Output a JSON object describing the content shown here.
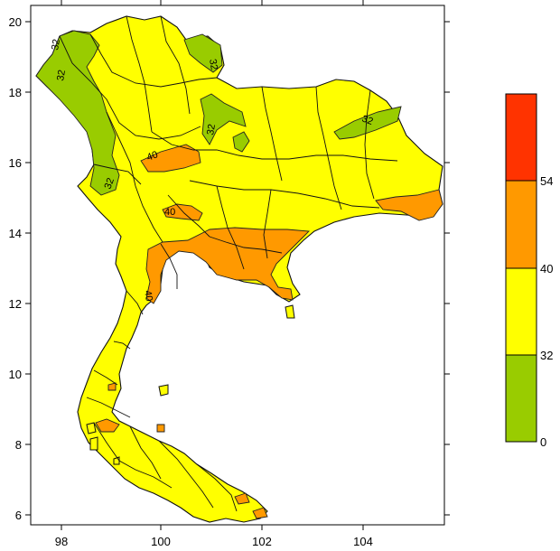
{
  "map": {
    "x_ticks": [
      "98",
      "100",
      "102",
      "104"
    ],
    "y_ticks": [
      "20",
      "18",
      "16",
      "14",
      "12",
      "10",
      "8",
      "6"
    ],
    "contour_labels": [
      "32",
      "32",
      "32",
      "32",
      "32",
      "32",
      "40",
      "40",
      "40"
    ],
    "region_colors": {
      "0-32": "#99cc00",
      "32-40": "#ffff00",
      "40-54": "#ff9900",
      "54+": "#ff3300"
    }
  },
  "legend": {
    "labels": [
      "54",
      "40",
      "32",
      "0"
    ],
    "colors": [
      "#ff3300",
      "#ff9900",
      "#ffff00",
      "#99cc00"
    ]
  }
}
